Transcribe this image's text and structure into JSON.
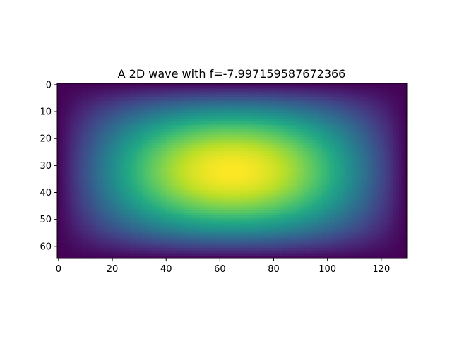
{
  "chart_data": {
    "type": "heatmap",
    "title": "A 2D wave with f=-7.997159587672366",
    "xlabel": "",
    "ylabel": "",
    "colormap": "viridis",
    "shape": [
      65,
      130
    ],
    "function": "z = sin(pi*(col+0.5)/130) * sin(pi*(row+0.5)/65)",
    "value_range": [
      0,
      1
    ],
    "xlim": [
      -0.5,
      129.5
    ],
    "ylim": [
      64.5,
      -0.5
    ],
    "x_ticks": [
      0,
      20,
      40,
      60,
      80,
      100,
      120
    ],
    "y_ticks": [
      0,
      10,
      20,
      30,
      40,
      50,
      60
    ],
    "grid": false,
    "legend": "none"
  }
}
